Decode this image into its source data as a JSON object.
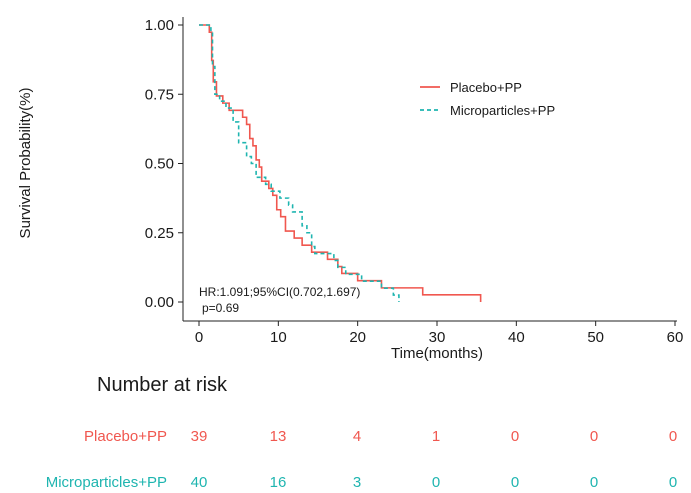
{
  "chart_data": {
    "type": "line",
    "title": "",
    "xlabel": "Time(months)",
    "ylabel": "Survival Probability(%)",
    "xlim": [
      0,
      60
    ],
    "ylim": [
      0,
      1
    ],
    "x_ticks": [
      "0",
      "10",
      "20",
      "30",
      "40",
      "50",
      "60"
    ],
    "y_ticks": [
      "0.00",
      "0.25",
      "0.50",
      "0.75",
      "1.00"
    ],
    "grid": false,
    "legend_position": "top-right",
    "annotation": {
      "hr": "HR:1.091;95%CI(0.702,1.697)",
      "p": "p=0.69"
    },
    "series": [
      {
        "name": "Placebo+PP",
        "color": "#f0574f",
        "line_style": "solid",
        "steps": [
          [
            0,
            1.0
          ],
          [
            1.3,
            0.974
          ],
          [
            1.6,
            0.872
          ],
          [
            1.8,
            0.795
          ],
          [
            2.2,
            0.744
          ],
          [
            3.0,
            0.718
          ],
          [
            3.8,
            0.692
          ],
          [
            5.5,
            0.667
          ],
          [
            6.0,
            0.641
          ],
          [
            6.4,
            0.59
          ],
          [
            6.8,
            0.564
          ],
          [
            7.2,
            0.513
          ],
          [
            7.6,
            0.487
          ],
          [
            7.9,
            0.436
          ],
          [
            8.8,
            0.41
          ],
          [
            9.3,
            0.385
          ],
          [
            9.8,
            0.333
          ],
          [
            10.3,
            0.308
          ],
          [
            10.9,
            0.256
          ],
          [
            12.0,
            0.231
          ],
          [
            13.0,
            0.205
          ],
          [
            14.2,
            0.18
          ],
          [
            16.2,
            0.154
          ],
          [
            17.5,
            0.128
          ],
          [
            18.0,
            0.103
          ],
          [
            20.0,
            0.077
          ],
          [
            23.0,
            0.051
          ],
          [
            28.2,
            0.026
          ],
          [
            35.5,
            0.0
          ]
        ]
      },
      {
        "name": "Microparticles+PP",
        "color": "#1fb5b0",
        "line_style": "dashed",
        "steps": [
          [
            0,
            1.0
          ],
          [
            1.5,
            0.975
          ],
          [
            1.7,
            0.85
          ],
          [
            2.0,
            0.75
          ],
          [
            2.6,
            0.725
          ],
          [
            3.4,
            0.7
          ],
          [
            4.3,
            0.65
          ],
          [
            5.0,
            0.575
          ],
          [
            6.0,
            0.525
          ],
          [
            6.6,
            0.5
          ],
          [
            7.2,
            0.45
          ],
          [
            8.4,
            0.425
          ],
          [
            9.1,
            0.4
          ],
          [
            10.2,
            0.375
          ],
          [
            11.3,
            0.35
          ],
          [
            11.8,
            0.325
          ],
          [
            13.0,
            0.275
          ],
          [
            13.6,
            0.25
          ],
          [
            14.2,
            0.2
          ],
          [
            14.6,
            0.175
          ],
          [
            17.0,
            0.15
          ],
          [
            17.5,
            0.125
          ],
          [
            18.5,
            0.1
          ],
          [
            20.5,
            0.075
          ],
          [
            23.0,
            0.05
          ],
          [
            24.5,
            0.025
          ],
          [
            25.2,
            0.0
          ]
        ]
      }
    ],
    "risk_table": {
      "title": "Number at risk",
      "rows": [
        {
          "name": "Placebo+PP",
          "color": "#f0574f",
          "values": [
            "39",
            "13",
            "4",
            "1",
            "0",
            "0",
            "0"
          ]
        },
        {
          "name": "Microparticles+PP",
          "color": "#1fb5b0",
          "values": [
            "40",
            "16",
            "3",
            "0",
            "0",
            "0",
            "0"
          ]
        }
      ]
    }
  }
}
